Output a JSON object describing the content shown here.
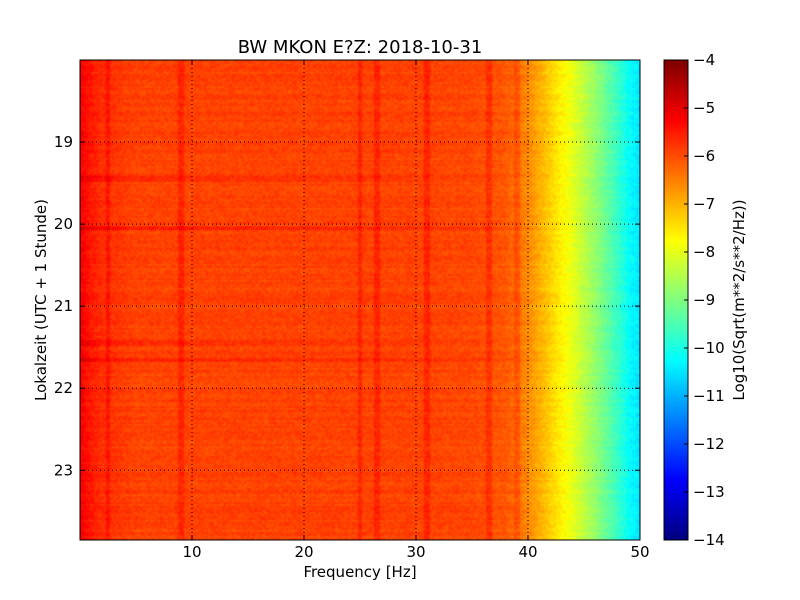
{
  "chart_data": {
    "type": "heatmap",
    "title": "BW MKON E?Z: 2018-10-31",
    "xlabel": "Frequency [Hz]",
    "ylabel": "Lokalzeit (UTC + 1 Stunde)",
    "xlim": [
      0,
      50
    ],
    "ylim": [
      23.85,
      18.0
    ],
    "x_ticks": [
      10,
      20,
      30,
      40,
      50
    ],
    "x_tick_labels": [
      "10",
      "20",
      "30",
      "40",
      "50"
    ],
    "y_ticks": [
      19,
      20,
      21,
      22,
      23
    ],
    "y_tick_labels": [
      "19",
      "20",
      "21",
      "22",
      "23"
    ],
    "grid": true,
    "colorbar": {
      "label": "Log10(Sqrt(m**2/s**2/Hz))",
      "range": [
        -14,
        -4
      ],
      "ticks": [
        -4,
        -5,
        -6,
        -7,
        -8,
        -9,
        -10,
        -11,
        -12,
        -13,
        -14
      ],
      "tick_labels": [
        "−4",
        "−5",
        "−6",
        "−7",
        "−8",
        "−9",
        "−10",
        "−11",
        "−12",
        "−13",
        "−14"
      ],
      "colormap": "jet"
    },
    "frequency_profile": {
      "frequency_hz": [
        0,
        1,
        2,
        5,
        10,
        20,
        30,
        35,
        38,
        40,
        42,
        44,
        46,
        48,
        49,
        50
      ],
      "level": [
        -5.2,
        -5.5,
        -5.7,
        -5.9,
        -5.9,
        -5.9,
        -5.9,
        -5.95,
        -6.1,
        -6.6,
        -7.3,
        -8.0,
        -8.8,
        -9.7,
        -10.2,
        -10.5
      ]
    },
    "horizontal_bands": [
      {
        "time": 19.45,
        "level_offset": 0.35
      },
      {
        "time": 20.05,
        "level_offset": 0.4
      },
      {
        "time": 21.45,
        "level_offset": 0.3
      },
      {
        "time": 21.65,
        "level_offset": 0.3
      }
    ],
    "vertical_lines_hz": [
      2.5,
      9,
      25,
      26.5,
      31,
      36.5,
      39
    ]
  }
}
